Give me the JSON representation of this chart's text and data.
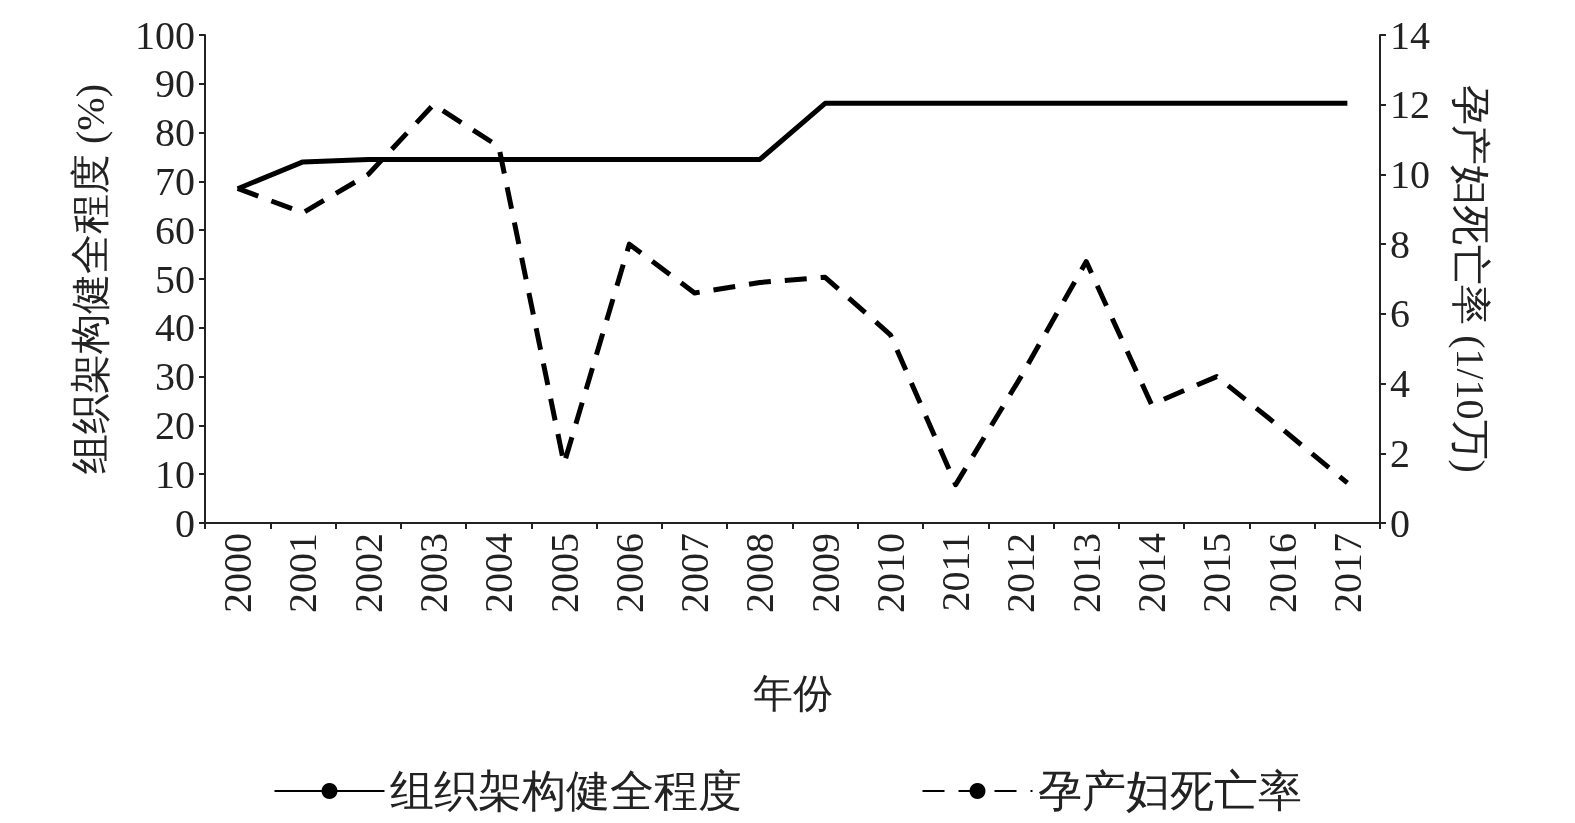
{
  "chart_data": {
    "type": "line",
    "xlabel": "年份",
    "ylabel": "组织架构健全程度 (%)",
    "y2label": "孕产妇死亡率 (1/10万)",
    "categories": [
      "2000",
      "2001",
      "2002",
      "2003",
      "2004",
      "2005",
      "2006",
      "2007",
      "2008",
      "2009",
      "2010",
      "2011",
      "2012",
      "2013",
      "2014",
      "2015",
      "2016",
      "2017"
    ],
    "series": [
      {
        "name": "组织架构健全程度",
        "color": "#000000",
        "line_style": "solid",
        "values": [
          68.5,
          74,
          74.5,
          74.5,
          74.5,
          74.5,
          74.5,
          74.5,
          74.5,
          86,
          86,
          86,
          86,
          86,
          86,
          86,
          86,
          86
        ]
      },
      {
        "name": "孕产妇死亡率",
        "color": "#000000",
        "line_style": "dashed",
        "axis": "y2",
        "values": [
          9.6,
          8.9,
          10,
          12,
          10.8,
          1.7,
          8,
          6.6,
          6.9,
          7.05,
          5.4,
          1.1,
          4.2,
          7.5,
          3.4,
          4.2,
          2.7,
          1.15
        ]
      }
    ],
    "ylim": [
      0,
      100
    ],
    "yticks": [
      0,
      10,
      20,
      30,
      40,
      50,
      60,
      70,
      80,
      90,
      100
    ],
    "y2lim": [
      0,
      14
    ],
    "y2ticks": [
      0,
      2,
      4,
      6,
      8,
      10,
      12,
      14
    ],
    "legend": "bottom",
    "grid": false,
    "marker": "none"
  }
}
